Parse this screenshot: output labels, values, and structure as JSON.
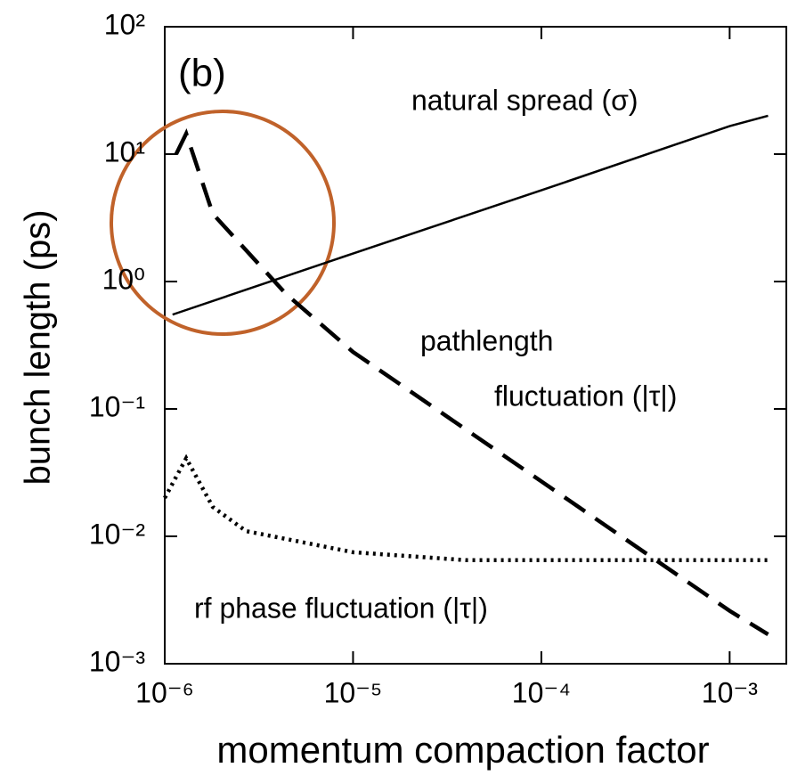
{
  "chart_data": {
    "type": "line",
    "log_x": true,
    "log_y": true,
    "xlabel": "momentum compaction factor",
    "ylabel": "bunch length (ps)",
    "xlim": [
      1e-06,
      0.002
    ],
    "ylim": [
      0.001,
      100
    ],
    "xticks": [
      {
        "value": 1e-06,
        "label": "10⁻⁶"
      },
      {
        "value": 1e-05,
        "label": "10⁻⁵"
      },
      {
        "value": 0.0001,
        "label": "10⁻⁴"
      },
      {
        "value": 0.001,
        "label": "10⁻³"
      }
    ],
    "yticks": [
      {
        "value": 0.001,
        "label": "10⁻³"
      },
      {
        "value": 0.01,
        "label": "10⁻²"
      },
      {
        "value": 0.1,
        "label": "10⁻¹"
      },
      {
        "value": 1,
        "label": "10⁰"
      },
      {
        "value": 10,
        "label": "10¹"
      },
      {
        "value": 100,
        "label": "10²"
      }
    ],
    "annotations": [
      "(b)",
      "natural spread (σ)",
      "pathlength",
      "fluctuation (|τ|)",
      "rf phase fluctuation (|τ|)"
    ],
    "series": [
      {
        "color": "#000000",
        "linestyle": "solid",
        "x": [
          1.1e-06,
          1e-05,
          0.0001,
          0.001,
          0.0016
        ],
        "values": [
          0.55,
          1.66,
          5.2,
          16.6,
          20
        ]
      },
      {
        "color": "#000000",
        "linestyle": "dashed",
        "x": [
          1.15e-06,
          1.3e-06,
          1.8e-06,
          4.4e-06,
          1e-05,
          0.0001,
          0.001,
          0.0016
        ],
        "values": [
          10,
          14.5,
          3.4,
          0.8,
          0.28,
          0.027,
          0.0026,
          0.0017
        ]
      },
      {
        "color": "#000000",
        "linestyle": "dotted",
        "x": [
          1e-06,
          1.3e-06,
          1.8e-06,
          2.7e-06,
          1e-05,
          4e-05,
          0.0016
        ],
        "values": [
          0.02,
          0.041,
          0.017,
          0.011,
          0.0075,
          0.0065,
          0.0065
        ]
      }
    ]
  }
}
